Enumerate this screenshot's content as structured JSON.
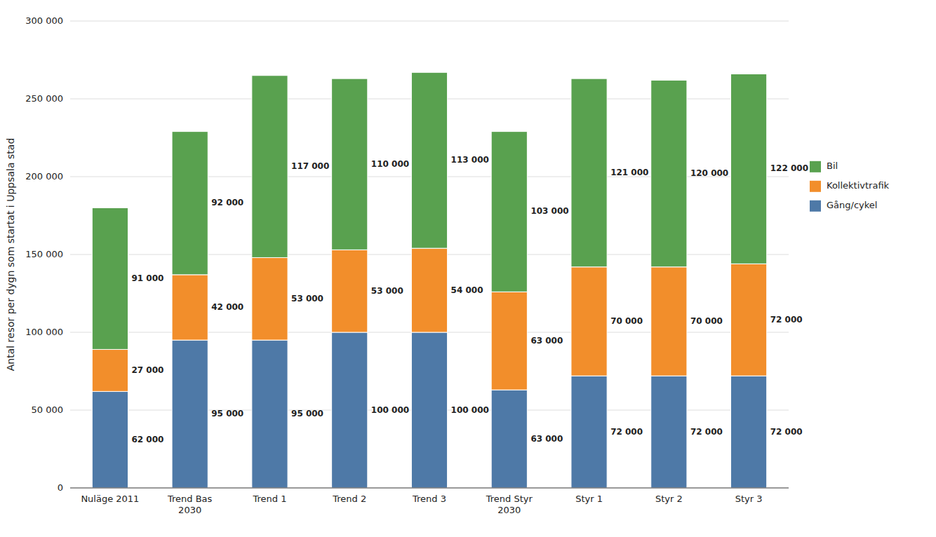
{
  "chart_data": {
    "type": "bar",
    "stacked": true,
    "categories": [
      "Nuläge 2011",
      "Trend Bas\n2030",
      "Trend 1",
      "Trend 2",
      "Trend 3",
      "Trend Styr\n2030",
      "Styr 1",
      "Styr 2",
      "Styr 3"
    ],
    "series": [
      {
        "name": "Gång/cykel",
        "values": [
          62000,
          95000,
          95000,
          100000,
          100000,
          63000,
          72000,
          72000,
          72000
        ],
        "value_labels": [
          "62 000",
          "95 000",
          "95 000",
          "100 000",
          "100 000",
          "63 000",
          "72 000",
          "72 000",
          "72 000"
        ]
      },
      {
        "name": "Kollektivtrafik",
        "values": [
          27000,
          42000,
          53000,
          53000,
          54000,
          63000,
          70000,
          70000,
          72000
        ],
        "value_labels": [
          "27 000",
          "42 000",
          "53 000",
          "53 000",
          "54 000",
          "63 000",
          "70 000",
          "70 000",
          "72 000"
        ]
      },
      {
        "name": "Bil",
        "values": [
          91000,
          92000,
          117000,
          110000,
          113000,
          103000,
          121000,
          120000,
          122000
        ],
        "value_labels": [
          "91 000",
          "92 000",
          "117 000",
          "110 000",
          "113 000",
          "103 000",
          "121 000",
          "120 000",
          "122 000"
        ]
      }
    ],
    "ylabel": "Antal resor per dygn som startat i Uppsala stad",
    "ylim": [
      0,
      300000
    ],
    "yticks": [
      0,
      {
        "value": 50000,
        "label": "50 000"
      },
      {
        "value": 100000,
        "label": "100 000"
      },
      {
        "value": 150000,
        "label": "150 000"
      },
      {
        "value": 200000,
        "label": "200 000"
      },
      {
        "value": 250000,
        "label": "250 000"
      },
      {
        "value": 300000,
        "label": "300 000"
      }
    ],
    "grid": true,
    "data_labels": true,
    "legend": "right"
  }
}
